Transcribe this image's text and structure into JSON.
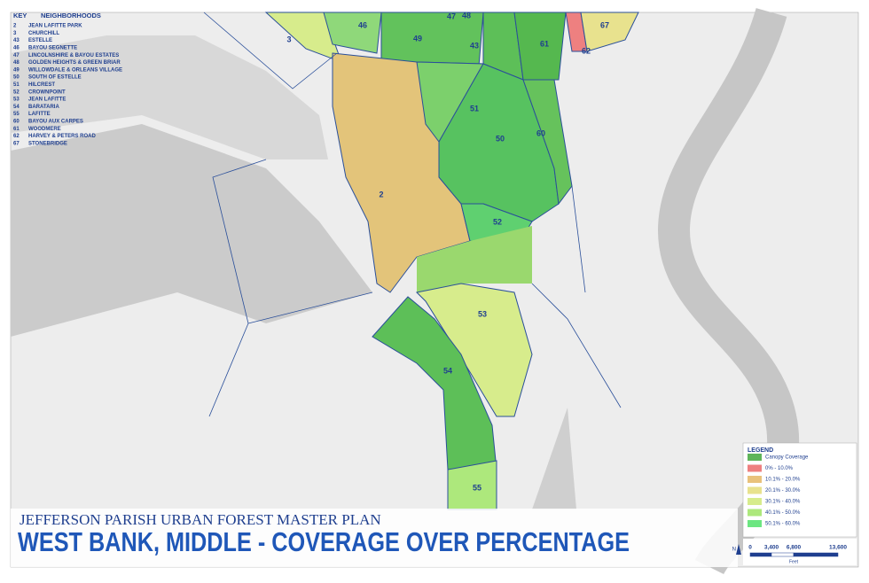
{
  "key": {
    "header": {
      "number": "KEY",
      "name": "NEIGHBORHOODS"
    },
    "rows": [
      [
        "2",
        "JEAN LAFITTE PARK"
      ],
      [
        "3",
        "CHURCHILL"
      ],
      [
        "43",
        "ESTELLE"
      ],
      [
        "46",
        "BAYOU SEGNETTE"
      ],
      [
        "47",
        "LINCOLNSHIRE & BAYOU ESTATES"
      ],
      [
        "48",
        "GOLDEN HEIGHTS & GREEN BRIAR"
      ],
      [
        "49",
        "WILLOWDALE & ORLEANS VILLAGE"
      ],
      [
        "50",
        "SOUTH OF ESTELLE"
      ],
      [
        "51",
        "HILCREST"
      ],
      [
        "52",
        "CROWNPOINT"
      ],
      [
        "53",
        "JEAN LAFITTE"
      ],
      [
        "54",
        "BARATARIA"
      ],
      [
        "55",
        "LAFITTE"
      ],
      [
        "60",
        "BAYOU AUX CARPES"
      ],
      [
        "61",
        "WOODMERE"
      ],
      [
        "62",
        "HARVEY & PETERS ROAD"
      ],
      [
        "67",
        "STONEBRIDGE"
      ]
    ]
  },
  "map": {
    "labels": [
      "3",
      "46",
      "47",
      "48",
      "49",
      "43",
      "61",
      "62",
      "67",
      "51",
      "50",
      "60",
      "2",
      "52",
      "53",
      "54",
      "55"
    ]
  },
  "legend": {
    "title": "LEGEND",
    "items": [
      {
        "label": "Canopy Coverage",
        "color": "#5fb55a"
      },
      {
        "label": "0% - 10.0%",
        "color": "#ee8080"
      },
      {
        "label": "10.1% - 20.0%",
        "color": "#e9c27c"
      },
      {
        "label": "20.1% - 30.0%",
        "color": "#e8e28e"
      },
      {
        "label": "30.1% - 40.0%",
        "color": "#d7ec8c"
      },
      {
        "label": "40.1% - 50.0%",
        "color": "#ade87c"
      },
      {
        "label": "50.1% - 60.0%",
        "color": "#6ce681"
      }
    ]
  },
  "scale": {
    "north": "N",
    "ticks": [
      "0",
      "3,400",
      "6,800",
      "13,600"
    ],
    "unit": "Feet"
  },
  "title": {
    "plan": "JEFFERSON PARISH URBAN FOREST MASTER PLAN",
    "main": "WEST BANK, MIDDLE - COVERAGE OVER PERCENTAGE"
  }
}
